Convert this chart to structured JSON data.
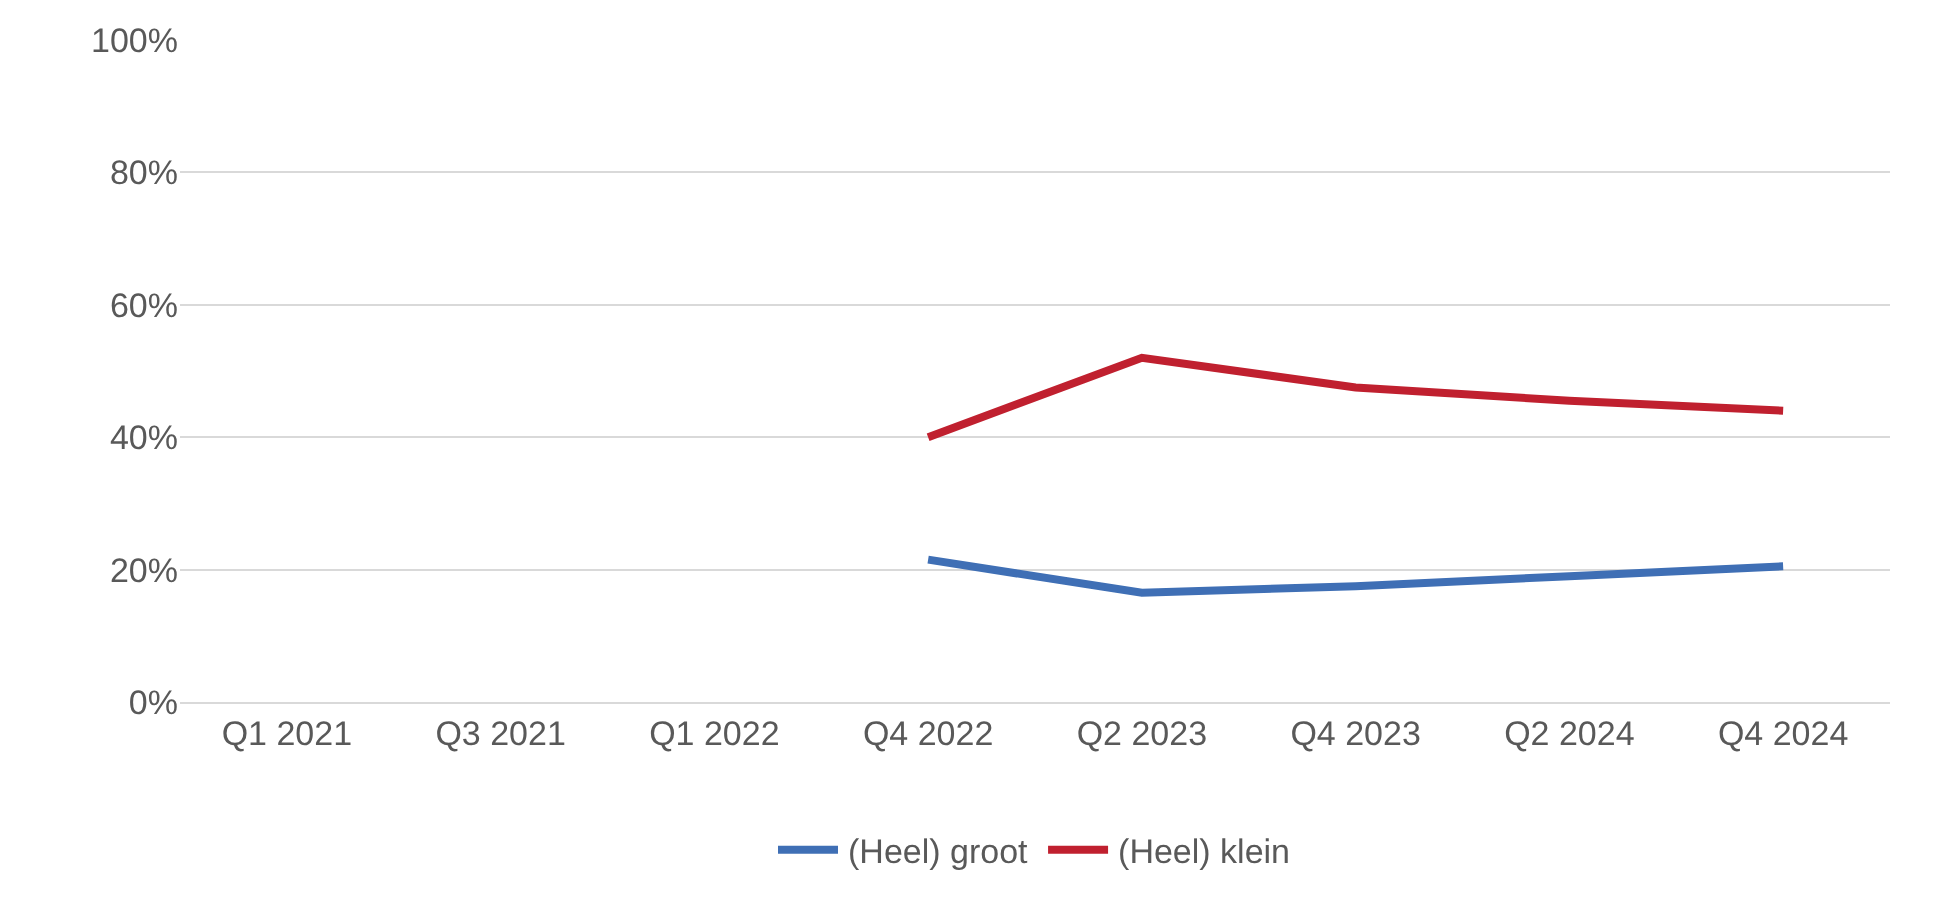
{
  "chart_data": {
    "type": "line",
    "categories": [
      "Q1 2021",
      "Q3 2021",
      "Q1 2022",
      "Q4 2022",
      "Q2 2023",
      "Q4 2023",
      "Q2 2024",
      "Q4 2024"
    ],
    "series": [
      {
        "name": "(Heel) groot",
        "color": "#3f6fb5",
        "values": [
          null,
          null,
          null,
          21.5,
          16.5,
          17.5,
          19,
          20.5
        ]
      },
      {
        "name": "(Heel) klein",
        "color": "#c0202f",
        "values": [
          null,
          null,
          null,
          40,
          52,
          47.5,
          45.5,
          44
        ]
      }
    ],
    "ylim": [
      0,
      100
    ],
    "yticks": [
      {
        "value": 0,
        "label": "0%"
      },
      {
        "value": 20,
        "label": "20%"
      },
      {
        "value": 40,
        "label": "40%"
      },
      {
        "value": 60,
        "label": "60%"
      },
      {
        "value": 80,
        "label": "80%"
      },
      {
        "value": 100,
        "label": "100%"
      }
    ],
    "grid": "y",
    "legend": "bottom",
    "marker": "none",
    "line_style": "solid"
  }
}
